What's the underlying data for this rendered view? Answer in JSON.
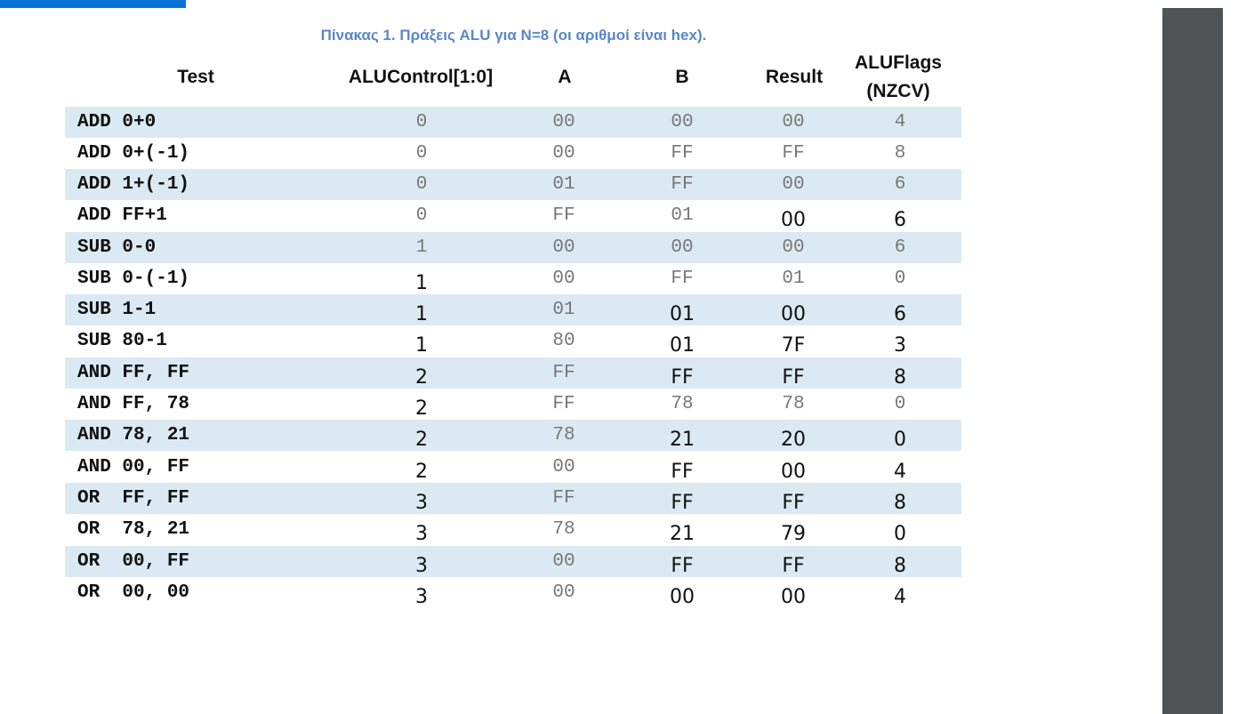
{
  "caption": "Πίνακας 1. Πράξεις ALU για N=8 (οι αριθμοί είναι hex).",
  "headers": {
    "test": "Test",
    "alucontrol": "ALUControl[1:0]",
    "a": "A",
    "b": "B",
    "result": "Result",
    "aluflags_line1": "ALUFlags",
    "aluflags_line2": "(NZCV)"
  },
  "rows": [
    {
      "test": "ADD 0+0",
      "ctrl": "0",
      "a": "00",
      "b": "00",
      "result": "00",
      "flags": "4",
      "hand": []
    },
    {
      "test": "ADD 0+(-1)",
      "ctrl": "0",
      "a": "00",
      "b": "FF",
      "result": "FF",
      "flags": "8",
      "hand": []
    },
    {
      "test": "ADD 1+(-1)",
      "ctrl": "0",
      "a": "01",
      "b": "FF",
      "result": "00",
      "flags": "6",
      "hand": []
    },
    {
      "test": "ADD FF+1",
      "ctrl": "0",
      "a": "FF",
      "b": "01",
      "result": "00",
      "flags": "6",
      "hand": [
        "result",
        "flags"
      ]
    },
    {
      "test": "SUB 0-0",
      "ctrl": "1",
      "a": "00",
      "b": "00",
      "result": "00",
      "flags": "6",
      "hand": []
    },
    {
      "test": "SUB 0-(-1)",
      "ctrl": "1",
      "a": "00",
      "b": "FF",
      "result": "01",
      "flags": "0",
      "hand": [
        "ctrl"
      ]
    },
    {
      "test": "SUB 1-1",
      "ctrl": "1",
      "a": "01",
      "b": "01",
      "result": "00",
      "flags": "6",
      "hand": [
        "ctrl",
        "b",
        "result",
        "flags"
      ]
    },
    {
      "test": "SUB 80-1",
      "ctrl": "1",
      "a": "80",
      "b": "01",
      "result": "7F",
      "flags": "3",
      "hand": [
        "ctrl",
        "b",
        "result",
        "flags"
      ]
    },
    {
      "test": "AND FF, FF",
      "ctrl": "2",
      "a": "FF",
      "b": "FF",
      "result": "FF",
      "flags": "8",
      "hand": [
        "ctrl",
        "b",
        "result",
        "flags"
      ]
    },
    {
      "test": "AND FF, 78",
      "ctrl": "2",
      "a": "FF",
      "b": "78",
      "result": "78",
      "flags": "0",
      "hand": [
        "ctrl"
      ]
    },
    {
      "test": "AND 78, 21",
      "ctrl": "2",
      "a": "78",
      "b": "21",
      "result": "20",
      "flags": "0",
      "hand": [
        "ctrl",
        "b",
        "result",
        "flags"
      ]
    },
    {
      "test": "AND 00, FF",
      "ctrl": "2",
      "a": "00",
      "b": "FF",
      "result": "00",
      "flags": "4",
      "hand": [
        "ctrl",
        "b",
        "result",
        "flags"
      ]
    },
    {
      "test": "OR  FF, FF",
      "ctrl": "3",
      "a": "FF",
      "b": "FF",
      "result": "FF",
      "flags": "8",
      "hand": [
        "ctrl",
        "b",
        "result",
        "flags"
      ]
    },
    {
      "test": "OR  78, 21",
      "ctrl": "3",
      "a": "78",
      "b": "21",
      "result": "79",
      "flags": "0",
      "hand": [
        "ctrl",
        "b",
        "result",
        "flags"
      ]
    },
    {
      "test": "OR  00, FF",
      "ctrl": "3",
      "a": "00",
      "b": "FF",
      "result": "FF",
      "flags": "8",
      "hand": [
        "ctrl",
        "b",
        "result",
        "flags"
      ]
    },
    {
      "test": "OR  00, 00",
      "ctrl": "3",
      "a": "00",
      "b": "00",
      "result": "00",
      "flags": "4",
      "hand": [
        "ctrl",
        "b",
        "result",
        "flags"
      ]
    }
  ]
}
